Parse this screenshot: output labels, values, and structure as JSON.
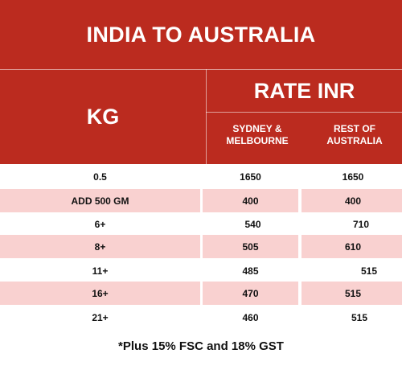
{
  "title": "INDIA TO AUSTRALIA",
  "columns": {
    "kg": "KG",
    "rate": "RATE INR",
    "sydney": [
      "SYDNEY &",
      "MELBOURNE"
    ],
    "rest": [
      "REST OF",
      "AUSTRALIA"
    ]
  },
  "rows": [
    {
      "kg": "0.5",
      "sydney": "1650",
      "rest": "1650"
    },
    {
      "kg": "ADD 500 GM",
      "sydney": "400",
      "rest": "400"
    },
    {
      "kg": "6+",
      "sydney": "540",
      "rest": "710"
    },
    {
      "kg": "8+",
      "sydney": "505",
      "rest": "610"
    },
    {
      "kg": "11+",
      "sydney": "485",
      "rest": "515"
    },
    {
      "kg": "16+",
      "sydney": "470",
      "rest": "515"
    },
    {
      "kg": "21+",
      "sydney": "460",
      "rest": "515"
    }
  ],
  "footnote": "*Plus 15% FSC and 18% GST",
  "colors": {
    "header_bg": "#bb2b1f",
    "stripe_bg": "#f9d1d0",
    "text": "#111111"
  }
}
